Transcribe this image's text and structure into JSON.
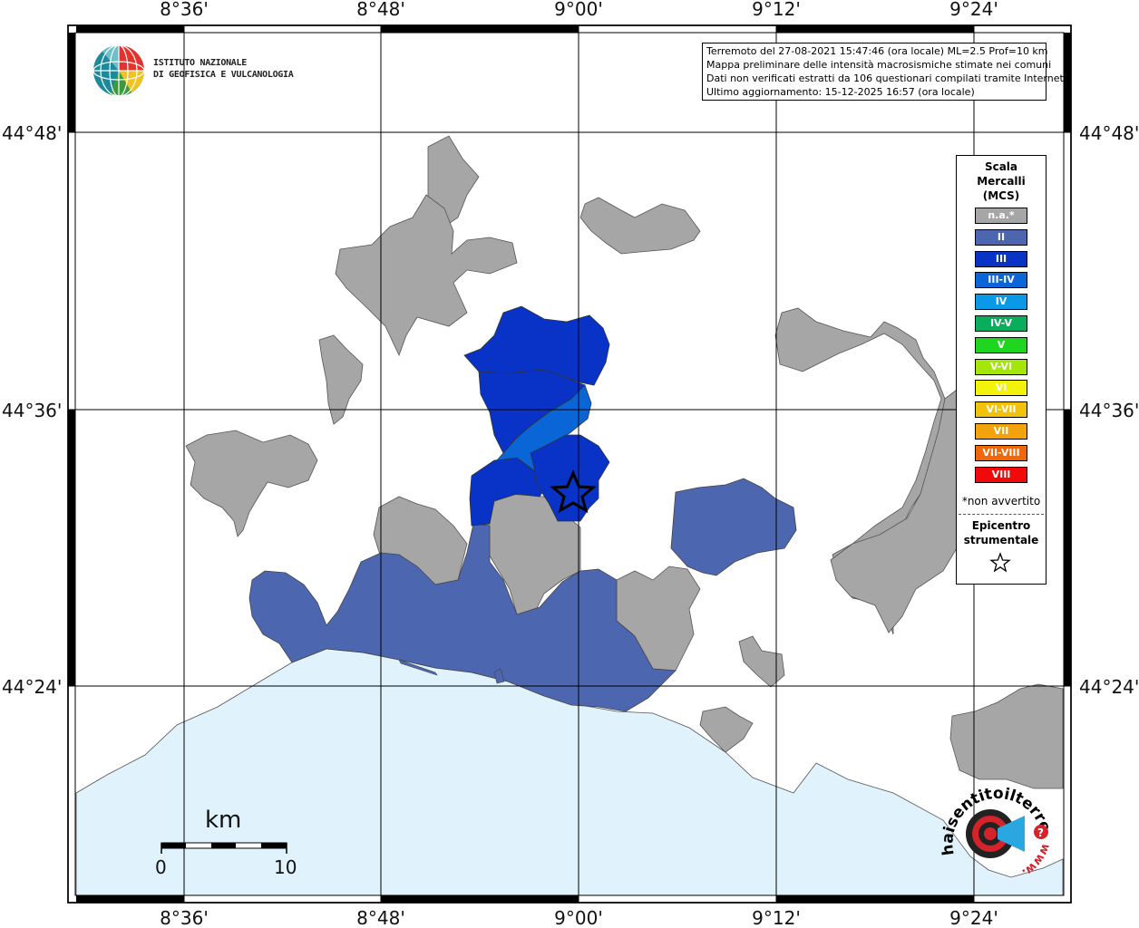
{
  "map": {
    "lon_labels": [
      "8°36'",
      "8°48'",
      "9°00'",
      "9°12'",
      "9°24'"
    ],
    "lat_labels": [
      "44°48'",
      "44°36'",
      "44°24'"
    ]
  },
  "info": {
    "line1": "Terremoto del 27-08-2021 15:47:46 (ora locale) ML=2.5 Prof=10 km",
    "line2": "Mappa preliminare delle intensità macrosismiche stimate nei comuni",
    "line3": "Dati non verificati estratti da 106 questionari compilati tramite Internet.",
    "line4": "Ultimo aggiornamento: 15-12-2025 16:57 (ora locale)"
  },
  "logo": {
    "line1": "ISTITUTO NAZIONALE",
    "line2": "DI GEOFISICA E VULCANOLOGIA"
  },
  "legend": {
    "title1": "Scala",
    "title2": "Mercalli",
    "title3": "(MCS)",
    "items": [
      {
        "label": "n.a.*",
        "color": "#a6a6a6"
      },
      {
        "label": "II",
        "color": "#4d66b0"
      },
      {
        "label": "III",
        "color": "#0833c6"
      },
      {
        "label": "III-IV",
        "color": "#0a66d6"
      },
      {
        "label": "IV",
        "color": "#0a99e6"
      },
      {
        "label": "IV-V",
        "color": "#0aad5c"
      },
      {
        "label": "V",
        "color": "#1ed61e"
      },
      {
        "label": "V-VI",
        "color": "#a5e60a"
      },
      {
        "label": "VI",
        "color": "#f2f20a"
      },
      {
        "label": "VI-VII",
        "color": "#f2c20a"
      },
      {
        "label": "VII",
        "color": "#f2a20a"
      },
      {
        "label": "VII-VIII",
        "color": "#f2660a"
      },
      {
        "label": "VIII",
        "color": "#f20a0a"
      }
    ],
    "note": "*non avvertito",
    "epicenter1": "Epicentro",
    "epicenter2": "strumentale"
  },
  "scalebar": {
    "unit": "km",
    "min": "0",
    "max": "10"
  },
  "badge": {
    "text": "haisentitoilterremoto.it",
    "url": "www."
  },
  "colors": {
    "sea": "#e0f2fb",
    "na": "#a6a6a6",
    "ii": "#4d66b0",
    "iii": "#0833c6",
    "iii_iv": "#0a66d6"
  }
}
